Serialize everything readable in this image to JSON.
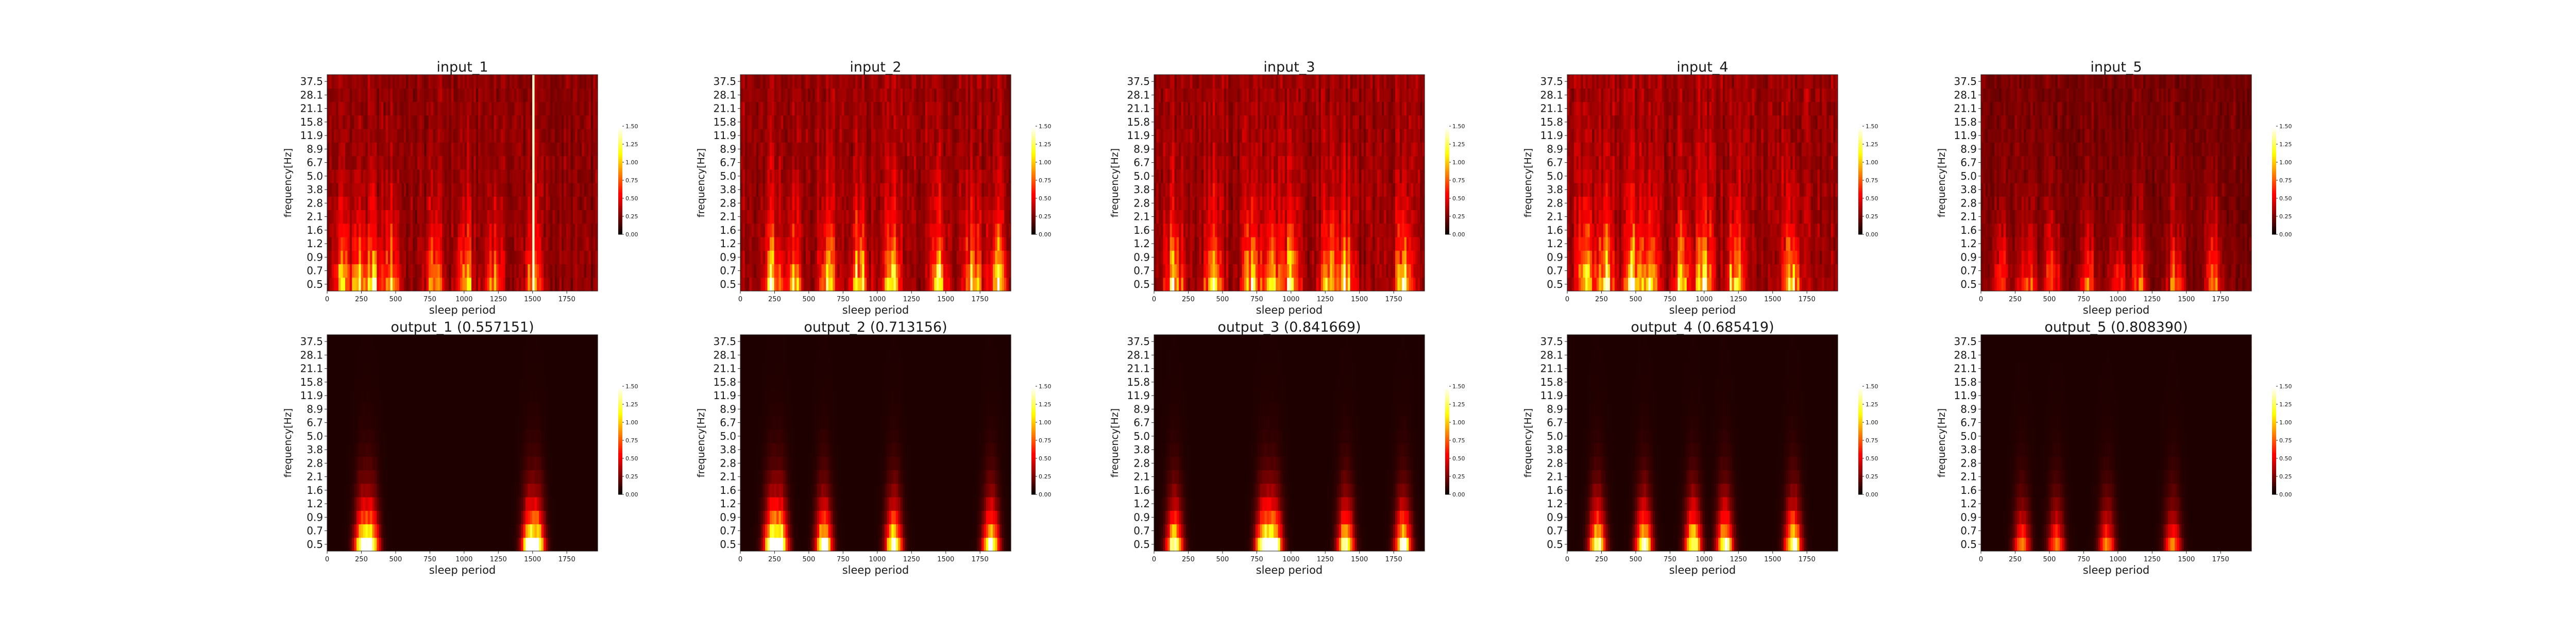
{
  "chart_data": {
    "type": "heatmap",
    "colormap": "hot",
    "xlabel": "sleep period",
    "ylabel": "frequency[Hz]",
    "xlim": [
      0,
      1975
    ],
    "x_ticks": [
      0,
      250,
      500,
      750,
      1000,
      1250,
      1500,
      1750
    ],
    "y_ticks": [
      "0.5",
      "0.7",
      "0.9",
      "1.2",
      "1.6",
      "2.1",
      "2.8",
      "3.8",
      "5.0",
      "6.7",
      "8.9",
      "11.9",
      "15.8",
      "21.1",
      "28.1",
      "37.5"
    ],
    "colorbar": {
      "range": [
        0.0,
        1.5
      ],
      "ticks": [
        "0.00",
        "0.25",
        "0.50",
        "0.75",
        "1.00",
        "1.25",
        "1.50"
      ]
    },
    "panels": [
      {
        "title": "input_1",
        "hot_x": [
          110,
          230,
          340,
          470,
          780,
          1010,
          1220,
          1500
        ],
        "intensity": 0.75,
        "low_only": false,
        "spike_x": 1510
      },
      {
        "title": "input_2",
        "hot_x": [
          230,
          380,
          640,
          870,
          1110,
          1450,
          1700,
          1880
        ],
        "intensity": 0.9,
        "low_only": false
      },
      {
        "title": "input_3",
        "hot_x": [
          150,
          430,
          710,
          860,
          1000,
          1280,
          1400,
          1820
        ],
        "intensity": 0.9,
        "low_only": false
      },
      {
        "title": "input_4",
        "hot_x": [
          140,
          280,
          480,
          600,
          840,
          1000,
          1230,
          1640
        ],
        "intensity": 0.95,
        "low_only": false
      },
      {
        "title": "input_5",
        "hot_x": [
          140,
          340,
          520,
          780,
          1000,
          1150,
          1420,
          1700
        ],
        "intensity": 0.55,
        "low_only": false
      },
      {
        "title": "output_1 (0.557151)",
        "hot_x": [
          260,
          320,
          1480,
          1530
        ],
        "intensity": 0.9,
        "low_only": true
      },
      {
        "title": "output_2 (0.713156)",
        "hot_x": [
          230,
          290,
          610,
          1120,
          1830
        ],
        "intensity": 1.0,
        "low_only": true
      },
      {
        "title": "output_3 (0.841669)",
        "hot_x": [
          150,
          800,
          880,
          1400,
          1820
        ],
        "intensity": 0.95,
        "low_only": true
      },
      {
        "title": "output_4 (0.685419)",
        "hot_x": [
          220,
          560,
          920,
          1150,
          1650
        ],
        "intensity": 0.95,
        "low_only": true
      },
      {
        "title": "output_5 (0.808390)",
        "hot_x": [
          300,
          550,
          920,
          1400
        ],
        "intensity": 0.55,
        "low_only": true
      }
    ]
  }
}
